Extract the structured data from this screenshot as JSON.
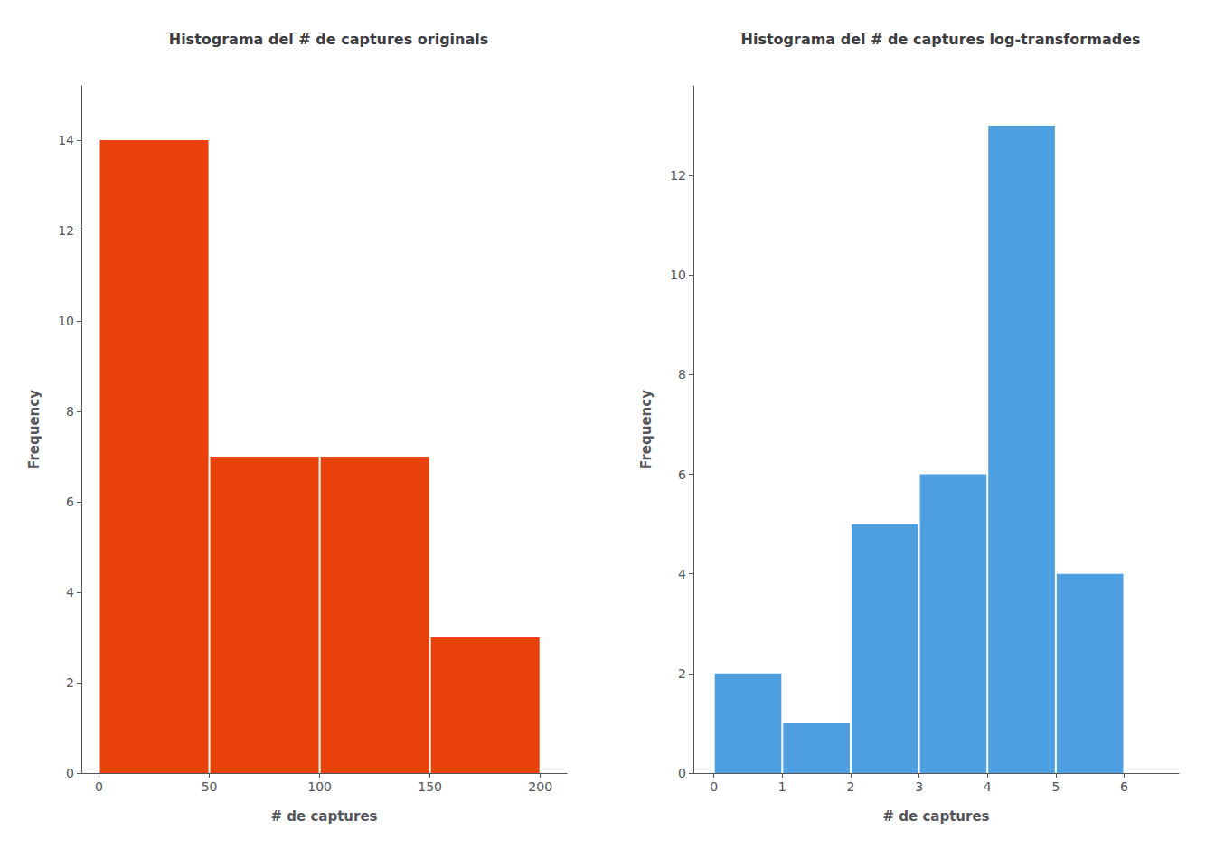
{
  "chart_data": [
    {
      "type": "histogram",
      "title": "Histograma del # de captures originals",
      "xlabel": "# de captures",
      "ylabel": "Frequency",
      "bins": [
        0,
        50,
        100,
        150,
        200
      ],
      "values": [
        14,
        7,
        7,
        3
      ],
      "color": "#E8420A",
      "xlim": [
        -8,
        212
      ],
      "ylim": [
        0,
        15.2
      ],
      "xticks": [
        0,
        50,
        100,
        150,
        200
      ],
      "yticks": [
        0,
        2,
        4,
        6,
        8,
        10,
        12,
        14
      ],
      "grid": false
    },
    {
      "type": "histogram",
      "title": "Histograma del # de captures log-transformades",
      "xlabel": "# de captures",
      "ylabel": "Frequency",
      "bins": [
        0,
        1,
        2,
        3,
        4,
        5,
        6
      ],
      "values": [
        2,
        1,
        5,
        6,
        13,
        4
      ],
      "color": "#4D9FE0",
      "xlim": [
        -0.3,
        6.8
      ],
      "ylim": [
        0,
        13.8
      ],
      "xticks": [
        0,
        1,
        2,
        3,
        4,
        5,
        6
      ],
      "yticks": [
        0,
        2,
        4,
        6,
        8,
        10,
        12
      ],
      "grid": false
    }
  ]
}
